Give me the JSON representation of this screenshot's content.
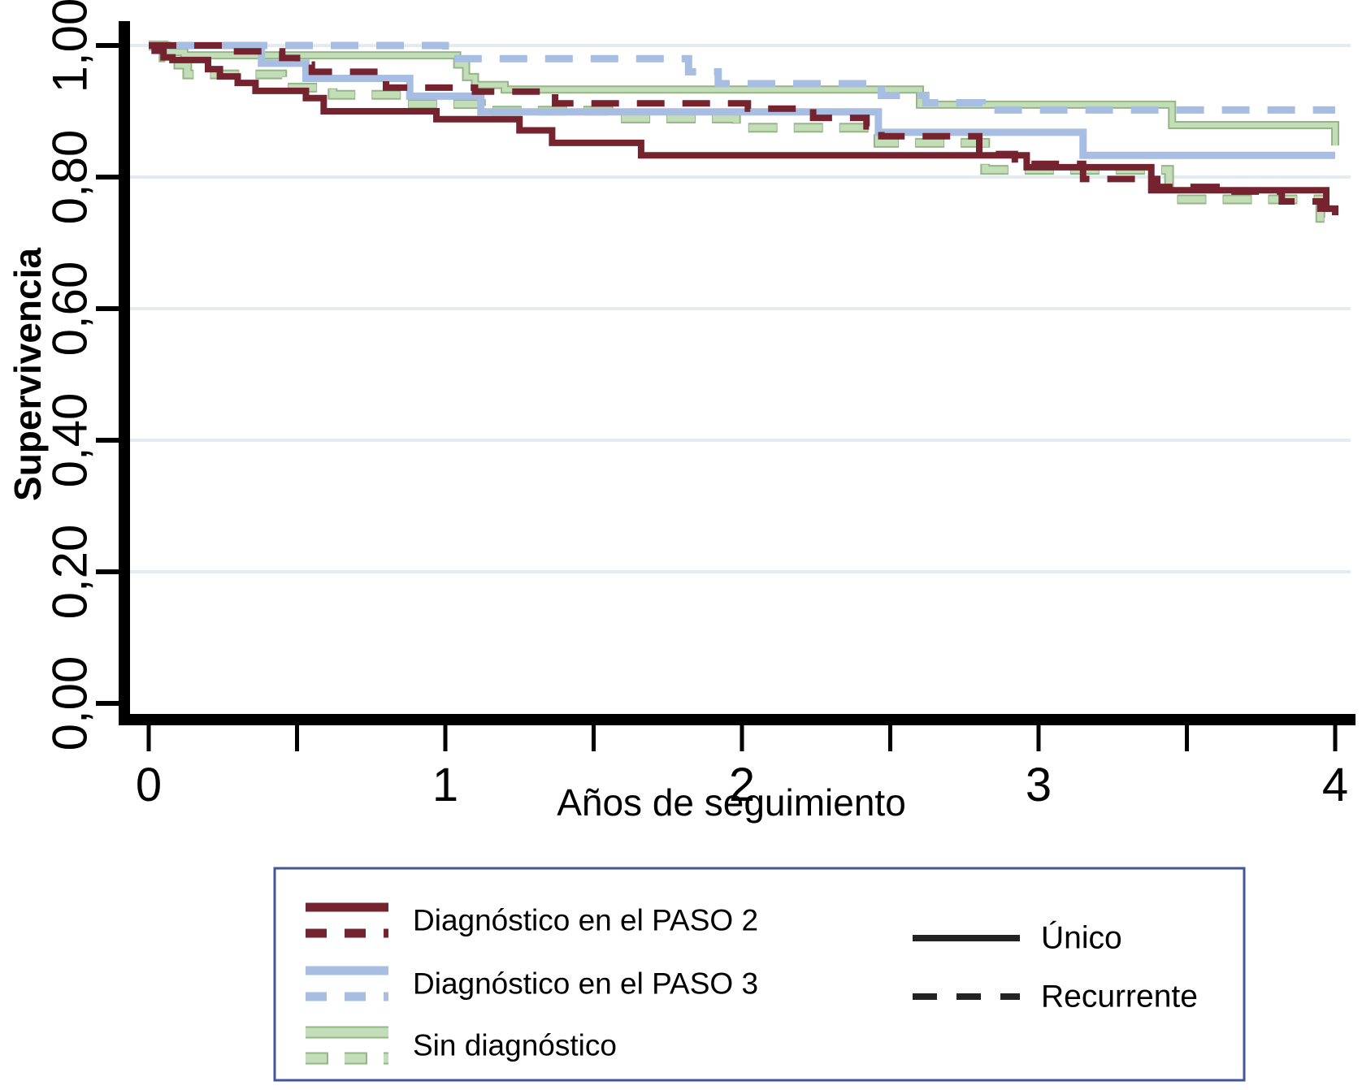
{
  "chart_data": {
    "type": "line",
    "subtype": "kaplan-meier-step",
    "title": "",
    "xlabel": "Años de seguimiento",
    "ylabel": "Supervivencia",
    "xlim": [
      0,
      4
    ],
    "ylim": [
      0.0,
      1.0
    ],
    "grid": "horizontal",
    "x_major_ticks": [
      0,
      1,
      2,
      3,
      4
    ],
    "x_tick_labels": [
      "0",
      "1",
      "2",
      "3",
      "4"
    ],
    "x_minor_tick_step": 0.5,
    "y_tick_values": [
      0.0,
      0.2,
      0.4,
      0.6,
      0.8,
      1.0
    ],
    "y_tick_labels": [
      "0,00",
      "0,20",
      "0,40",
      "0,60",
      "0,80",
      "1,00"
    ],
    "grid_color": "#E3EBF1",
    "axis_color": "#000000",
    "series": [
      {
        "name": "Sin diagnóstico — Recurrente",
        "group": "Sin diagnóstico",
        "linetype": "dashed",
        "color": "#C3DDB8",
        "edge_color": "#96B586",
        "points": [
          [
            0,
            1.0
          ],
          [
            0.05,
            0.982
          ],
          [
            0.1,
            0.971
          ],
          [
            0.13,
            0.956
          ],
          [
            0.45,
            0.936
          ],
          [
            0.62,
            0.925
          ],
          [
            0.85,
            0.911
          ],
          [
            1.12,
            0.901
          ],
          [
            1.55,
            0.889
          ],
          [
            1.98,
            0.875
          ],
          [
            2.46,
            0.852
          ],
          [
            2.82,
            0.811
          ],
          [
            3.44,
            0.766
          ],
          [
            3.95,
            0.738
          ],
          [
            4.0,
            0.735
          ]
        ]
      },
      {
        "name": "Sin diagnóstico — Único",
        "group": "Sin diagnóstico",
        "linetype": "solid",
        "color": "#C3DDB8",
        "edge_color": "#96B586",
        "points": [
          [
            0,
            1.0
          ],
          [
            0.06,
            0.99
          ],
          [
            0.12,
            0.985
          ],
          [
            1.04,
            0.971
          ],
          [
            1.07,
            0.952
          ],
          [
            1.1,
            0.94
          ],
          [
            1.2,
            0.933
          ],
          [
            2.6,
            0.91
          ],
          [
            3.45,
            0.879
          ],
          [
            4.0,
            0.848
          ]
        ]
      },
      {
        "name": "Diagnóstico en el PASO 3 — Recurrente",
        "group": "Diagnóstico en el PASO 3",
        "linetype": "dashed",
        "color": "#A7BDE2",
        "edge_color": "",
        "points": [
          [
            0,
            1.0
          ],
          [
            1.0,
            0.98
          ],
          [
            1.82,
            0.96
          ],
          [
            1.92,
            0.942
          ],
          [
            2.47,
            0.924
          ],
          [
            2.62,
            0.913
          ],
          [
            2.81,
            0.902
          ],
          [
            4.0,
            0.902
          ]
        ]
      },
      {
        "name": "Diagnóstico en el PASO 3 — Único",
        "group": "Diagnóstico en el PASO 3",
        "linetype": "solid",
        "color": "#A7BDE2",
        "edge_color": "",
        "points": [
          [
            0,
            1.0
          ],
          [
            0.38,
            0.973
          ],
          [
            0.53,
            0.95
          ],
          [
            0.88,
            0.923
          ],
          [
            1.12,
            0.899
          ],
          [
            2.46,
            0.868
          ],
          [
            3.15,
            0.833
          ],
          [
            4.0,
            0.833
          ]
        ]
      },
      {
        "name": "Diagnóstico en el PASO 2 — Recurrente",
        "group": "Diagnóstico en el PASO 2",
        "linetype": "dashed",
        "color": "#75232F",
        "edge_color": "",
        "points": [
          [
            0,
            1.0
          ],
          [
            0.27,
            0.991
          ],
          [
            0.45,
            0.981
          ],
          [
            0.5,
            0.971
          ],
          [
            0.55,
            0.96
          ],
          [
            0.8,
            0.936
          ],
          [
            1.1,
            0.93
          ],
          [
            1.37,
            0.912
          ],
          [
            2.02,
            0.904
          ],
          [
            2.24,
            0.89
          ],
          [
            2.42,
            0.877
          ],
          [
            2.47,
            0.862
          ],
          [
            2.8,
            0.835
          ],
          [
            2.92,
            0.82
          ],
          [
            3.15,
            0.797
          ],
          [
            3.4,
            0.785
          ],
          [
            3.6,
            0.778
          ],
          [
            3.82,
            0.763
          ],
          [
            3.95,
            0.752
          ],
          [
            4.0,
            0.748
          ]
        ]
      },
      {
        "name": "Diagnóstico en el PASO 2 — Único",
        "group": "Diagnóstico en el PASO 2",
        "linetype": "solid",
        "color": "#75232F",
        "edge_color": "",
        "points": [
          [
            0,
            1.0
          ],
          [
            0.02,
            0.992
          ],
          [
            0.05,
            0.982
          ],
          [
            0.08,
            0.978
          ],
          [
            0.2,
            0.964
          ],
          [
            0.24,
            0.953
          ],
          [
            0.3,
            0.943
          ],
          [
            0.36,
            0.931
          ],
          [
            0.53,
            0.92
          ],
          [
            0.59,
            0.9
          ],
          [
            0.97,
            0.888
          ],
          [
            1.25,
            0.871
          ],
          [
            1.36,
            0.852
          ],
          [
            1.66,
            0.833
          ],
          [
            2.96,
            0.815
          ],
          [
            3.38,
            0.78
          ],
          [
            3.97,
            0.752
          ],
          [
            4.0,
            0.742
          ]
        ]
      }
    ]
  },
  "legend": {
    "border_color": "#46549A",
    "background": "#FFFFFF",
    "groups": [
      {
        "label": "Diagnóstico en el PASO 2",
        "color": "#75232F",
        "edge_color": ""
      },
      {
        "label": "Diagnóstico en el PASO 3",
        "color": "#A7BDE2",
        "edge_color": ""
      },
      {
        "label": "Sin diagnóstico",
        "color": "#C3DDB8",
        "edge_color": "#96B586"
      }
    ],
    "linetypes": [
      {
        "label": "Único",
        "style": "solid"
      },
      {
        "label": "Recurrente",
        "style": "dashed"
      }
    ],
    "linetype_color": "#222222"
  }
}
